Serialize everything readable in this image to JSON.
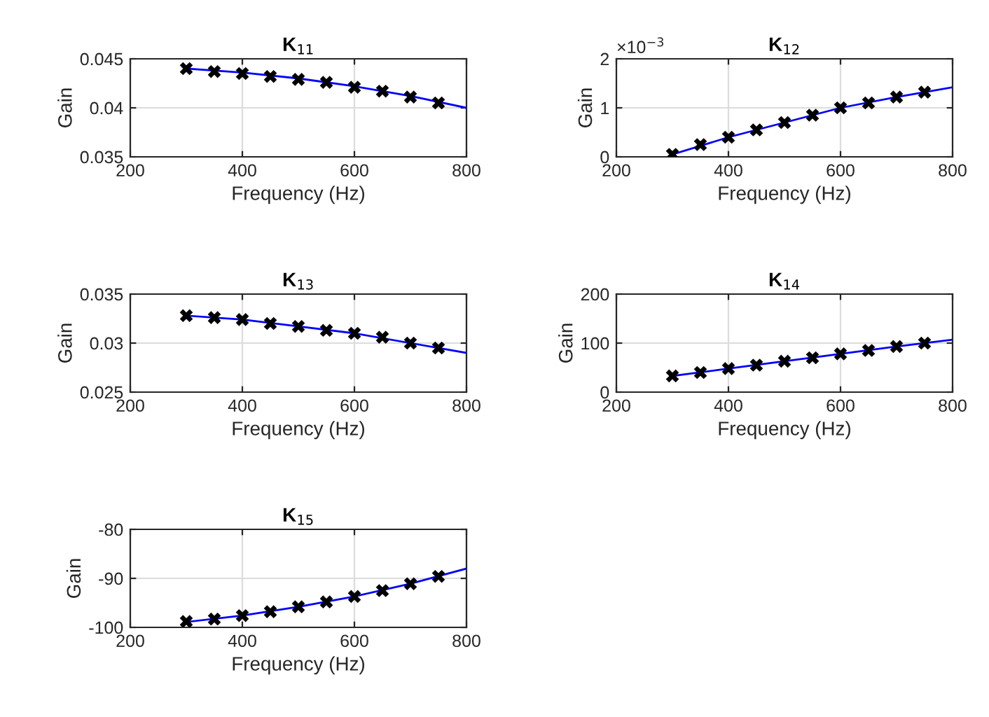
{
  "chart_data": [
    {
      "type": "line",
      "title": "K$_{11}$",
      "xlabel": "Frequency (Hz)",
      "ylabel": "Gain",
      "xlim": [
        200,
        800
      ],
      "xticks": [
        200,
        400,
        600,
        800
      ],
      "ylim": [
        0.035,
        0.045
      ],
      "yticks": [
        0.035,
        0.04,
        0.045
      ],
      "grid": true,
      "series": [
        {
          "color": "#0000ff",
          "marker": "none",
          "x": [
            300,
            400,
            500,
            600,
            700,
            800
          ],
          "values": [
            0.044,
            0.0436,
            0.043,
            0.0422,
            0.0412,
            0.04
          ]
        },
        {
          "type": "scatter",
          "color": "#000000",
          "marker": "cross",
          "x": [
            300,
            350,
            400,
            450,
            500,
            550,
            600,
            650,
            700,
            750
          ],
          "values": [
            0.044,
            0.0437,
            0.0435,
            0.0432,
            0.0429,
            0.0426,
            0.0421,
            0.0417,
            0.0411,
            0.0405
          ]
        }
      ]
    },
    {
      "type": "line",
      "title": "K$_{12}$",
      "xlabel": "Frequency (Hz)",
      "ylabel": "Gain",
      "annotations": [
        "×10$^{−3}$"
      ],
      "xlim": [
        200,
        800
      ],
      "xticks": [
        200,
        400,
        600,
        800
      ],
      "ylim": [
        0,
        2
      ],
      "yticks": [
        0,
        1,
        2
      ],
      "grid": true,
      "series": [
        {
          "color": "#0000ff",
          "marker": "none",
          "x": [
            300,
            400,
            500,
            600,
            700,
            800
          ],
          "values": [
            0.05,
            0.4,
            0.7,
            1.0,
            1.22,
            1.42
          ]
        },
        {
          "type": "scatter",
          "color": "#000000",
          "marker": "cross",
          "x": [
            300,
            350,
            400,
            450,
            500,
            550,
            600,
            650,
            700,
            750
          ],
          "values": [
            0.05,
            0.25,
            0.4,
            0.55,
            0.7,
            0.85,
            1.0,
            1.1,
            1.22,
            1.32
          ]
        }
      ]
    },
    {
      "type": "line",
      "title": "K$_{13}$",
      "xlabel": "Frequency (Hz)",
      "ylabel": "Gain",
      "xlim": [
        200,
        800
      ],
      "xticks": [
        200,
        400,
        600,
        800
      ],
      "ylim": [
        0.025,
        0.035
      ],
      "yticks": [
        0.025,
        0.03,
        0.035
      ],
      "grid": true,
      "series": [
        {
          "color": "#0000ff",
          "marker": "none",
          "x": [
            300,
            400,
            500,
            600,
            700,
            800
          ],
          "values": [
            0.0328,
            0.0324,
            0.0317,
            0.031,
            0.03,
            0.029
          ]
        },
        {
          "type": "scatter",
          "color": "#000000",
          "marker": "cross",
          "x": [
            300,
            350,
            400,
            450,
            500,
            550,
            600,
            650,
            700,
            750
          ],
          "values": [
            0.0328,
            0.0326,
            0.0324,
            0.032,
            0.0317,
            0.0313,
            0.031,
            0.0306,
            0.03,
            0.0295
          ]
        }
      ]
    },
    {
      "type": "line",
      "title": "K$_{14}$",
      "xlabel": "Frequency (Hz)",
      "ylabel": "Gain",
      "xlim": [
        200,
        800
      ],
      "xticks": [
        200,
        400,
        600,
        800
      ],
      "ylim": [
        0,
        200
      ],
      "yticks": [
        0,
        100,
        200
      ],
      "grid": true,
      "series": [
        {
          "color": "#0000ff",
          "marker": "none",
          "x": [
            300,
            400,
            500,
            600,
            700,
            800
          ],
          "values": [
            33,
            48,
            63,
            78,
            93,
            107
          ]
        },
        {
          "type": "scatter",
          "color": "#000000",
          "marker": "cross",
          "x": [
            300,
            350,
            400,
            450,
            500,
            550,
            600,
            650,
            700,
            750
          ],
          "values": [
            33,
            40,
            48,
            55,
            63,
            70,
            78,
            85,
            93,
            100
          ]
        }
      ]
    },
    {
      "type": "line",
      "title": "K$_{15}$",
      "xlabel": "Frequency (Hz)",
      "ylabel": "Gain",
      "xlim": [
        200,
        800
      ],
      "xticks": [
        200,
        400,
        600,
        800
      ],
      "ylim": [
        -100,
        -80
      ],
      "yticks": [
        -100,
        -90,
        -80
      ],
      "grid": true,
      "series": [
        {
          "color": "#0000ff",
          "marker": "none",
          "x": [
            300,
            400,
            500,
            600,
            700,
            800
          ],
          "values": [
            -98.9,
            -97.6,
            -95.8,
            -93.7,
            -91.1,
            -88.0
          ]
        },
        {
          "type": "scatter",
          "color": "#000000",
          "marker": "cross",
          "x": [
            300,
            350,
            400,
            450,
            500,
            550,
            600,
            650,
            700,
            750
          ],
          "values": [
            -98.8,
            -98.3,
            -97.6,
            -96.8,
            -95.8,
            -94.8,
            -93.7,
            -92.5,
            -91.1,
            -89.6
          ]
        }
      ]
    }
  ]
}
